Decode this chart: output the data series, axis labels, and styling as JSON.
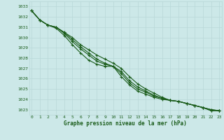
{
  "bg_color": "#cce8e8",
  "grid_color": "#b8d8d8",
  "line_color": "#1a5c1a",
  "xlabel": "Graphe pression niveau de la mer (hPa)",
  "xlabel_color": "#1a5c1a",
  "ylim": [
    1022.5,
    1033.5
  ],
  "xlim": [
    -0.3,
    23.3
  ],
  "yticks": [
    1023,
    1024,
    1025,
    1026,
    1027,
    1028,
    1029,
    1030,
    1031,
    1032,
    1033
  ],
  "xticks": [
    0,
    1,
    2,
    3,
    4,
    5,
    6,
    7,
    8,
    9,
    10,
    11,
    12,
    13,
    14,
    15,
    16,
    17,
    18,
    19,
    20,
    21,
    22,
    23
  ],
  "series": [
    [
      1032.6,
      1031.7,
      1031.2,
      1031.0,
      1030.5,
      1030.0,
      1029.3,
      1028.8,
      1028.3,
      1027.9,
      1027.5,
      1027.0,
      1026.2,
      1025.5,
      1025.0,
      1024.6,
      1024.2,
      1023.9,
      1023.8,
      1023.6,
      1023.4,
      1023.2,
      1023.0,
      1022.9
    ],
    [
      1032.6,
      1031.7,
      1031.2,
      1031.0,
      1030.5,
      1029.8,
      1029.1,
      1028.5,
      1027.9,
      1027.5,
      1027.2,
      1026.7,
      1025.8,
      1025.2,
      1024.8,
      1024.4,
      1024.1,
      1023.9,
      1023.8,
      1023.6,
      1023.4,
      1023.2,
      1023.0,
      1022.9
    ],
    [
      1032.6,
      1031.7,
      1031.2,
      1031.0,
      1030.4,
      1029.6,
      1028.9,
      1028.3,
      1027.7,
      1027.4,
      1027.2,
      1026.5,
      1025.6,
      1025.0,
      1024.7,
      1024.3,
      1024.1,
      1023.9,
      1023.8,
      1023.6,
      1023.4,
      1023.2,
      1022.9,
      1022.9
    ],
    [
      1032.6,
      1031.7,
      1031.2,
      1030.9,
      1030.2,
      1029.3,
      1028.5,
      1027.8,
      1027.4,
      1027.2,
      1027.2,
      1026.2,
      1025.4,
      1024.8,
      1024.5,
      1024.2,
      1024.0,
      1023.9,
      1023.8,
      1023.6,
      1023.4,
      1023.2,
      1022.9,
      1022.9
    ]
  ]
}
